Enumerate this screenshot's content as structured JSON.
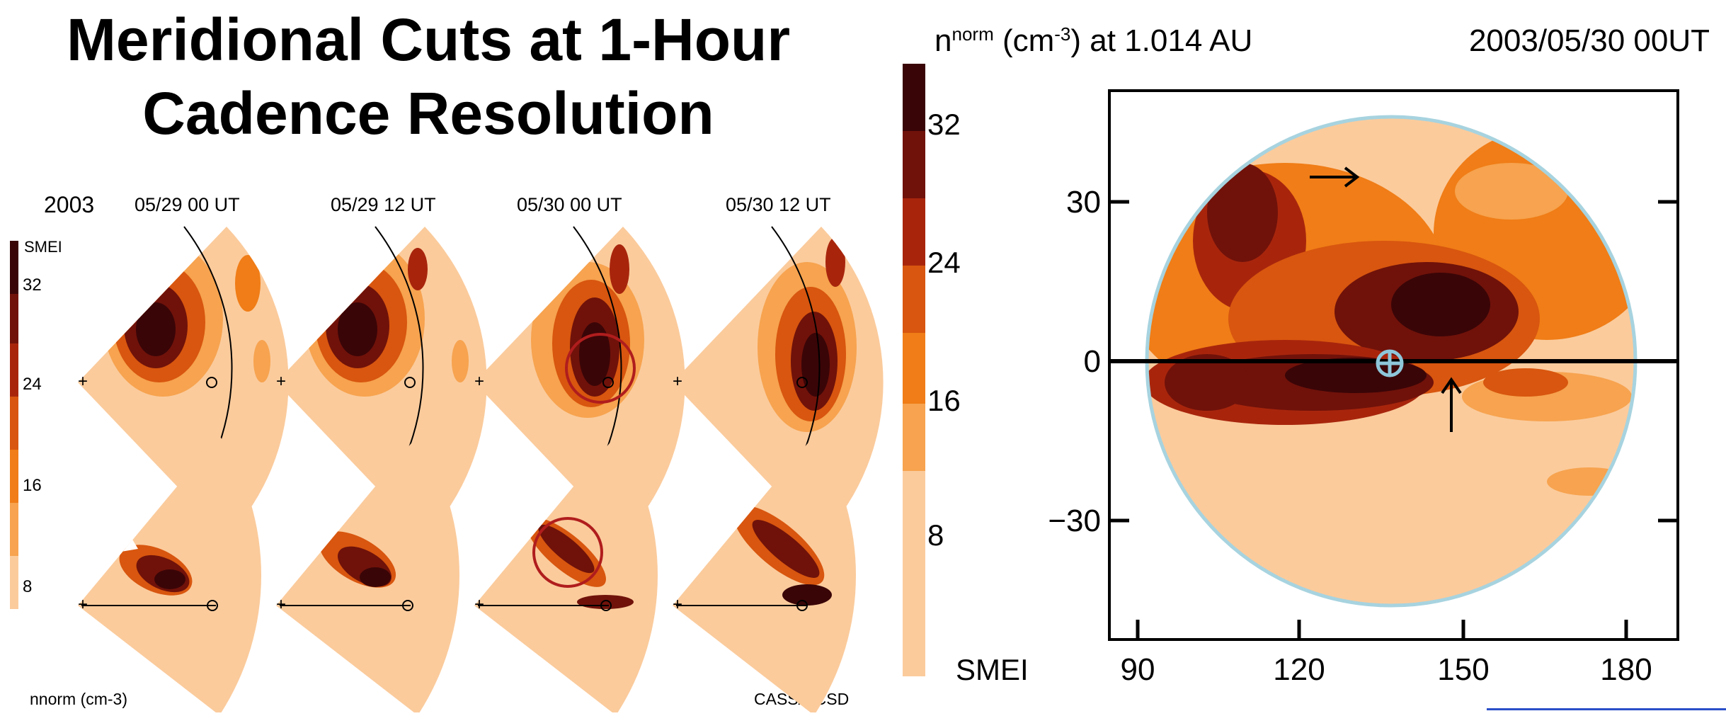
{
  "title": {
    "line1": "Meridional Cuts at 1-Hour",
    "line2": "Cadence Resolution"
  },
  "left_figure": {
    "year": "2003",
    "instrument": "SMEI",
    "times": [
      "05/29  00 UT",
      "05/29  12 UT",
      "05/30  00 UT",
      "05/30  12 UT"
    ],
    "colorbar_ticks": [
      "32",
      "24",
      "16",
      "8"
    ],
    "colorbar_label": "nnorm  (cm-3)",
    "credit": "CASS/UCSD"
  },
  "right_figure": {
    "quantity_prefix": "n",
    "quantity_sup": "norm",
    "quantity_unit_open": " (cm",
    "quantity_unit_sup": "-3",
    "quantity_rest": ") at 1.014 AU",
    "timestamp": "2003/05/30 00UT",
    "colorbar_ticks": [
      "32",
      "24",
      "16",
      "8"
    ],
    "colorbar_label": "SMEI",
    "y_ticks": [
      "30",
      "0",
      "−30"
    ],
    "x_ticks": [
      "90",
      "120",
      "150",
      "180"
    ]
  },
  "colors": {
    "c0": "#fbcb9c",
    "c1": "#f7a34f",
    "c2": "#f07d17",
    "c3": "#d8560f",
    "c4": "#a8250c",
    "c5": "#70120a",
    "c6": "#3a0507",
    "ring": "#a7d3df",
    "marker": "#8ec6da",
    "circle": "#b01d1d"
  }
}
